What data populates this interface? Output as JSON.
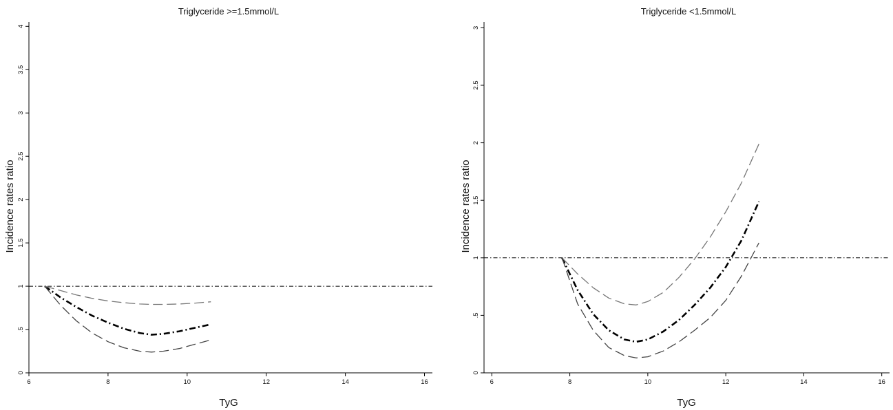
{
  "chart_data": [
    {
      "type": "line",
      "title": "Triglyceride >=1.5mmol/L",
      "xlabel": "TyG",
      "ylabel": "Incidence rates ratio",
      "xlim": [
        6,
        16.2
      ],
      "ylim": [
        0,
        4.05
      ],
      "xticks": [
        6,
        8,
        10,
        12,
        14,
        16
      ],
      "xtick_labels": [
        "6",
        "8",
        "10",
        "12",
        "14",
        "16"
      ],
      "yticks": [
        0,
        0.5,
        1,
        1.5,
        2,
        2.5,
        3,
        3.5,
        4
      ],
      "ytick_labels": [
        "0",
        ".5",
        "1",
        "1.5",
        "2",
        "2.5",
        "3",
        "3.5",
        "4"
      ],
      "reference_line": 1,
      "grid": false,
      "series": [
        {
          "role": "estimate",
          "x": [
            6.4,
            6.8,
            7.2,
            7.6,
            8.0,
            8.4,
            8.8,
            9.1,
            9.4,
            9.8,
            10.2,
            10.6
          ],
          "y": [
            1.0,
            0.87,
            0.76,
            0.66,
            0.58,
            0.51,
            0.46,
            0.44,
            0.45,
            0.48,
            0.52,
            0.56
          ]
        },
        {
          "role": "upper",
          "x": [
            6.4,
            6.8,
            7.2,
            7.6,
            8.0,
            8.4,
            8.8,
            9.1,
            9.4,
            9.8,
            10.2,
            10.6
          ],
          "y": [
            1.0,
            0.95,
            0.9,
            0.86,
            0.83,
            0.81,
            0.795,
            0.79,
            0.79,
            0.795,
            0.805,
            0.82
          ]
        },
        {
          "role": "lower",
          "x": [
            6.4,
            6.8,
            7.2,
            7.6,
            8.0,
            8.4,
            8.8,
            9.1,
            9.4,
            9.8,
            10.2,
            10.6
          ],
          "y": [
            1.0,
            0.78,
            0.6,
            0.46,
            0.36,
            0.29,
            0.25,
            0.24,
            0.25,
            0.28,
            0.33,
            0.38
          ]
        }
      ]
    },
    {
      "type": "line",
      "title": "Triglyceride <1.5mmol/L",
      "xlabel": "TyG",
      "ylabel": "Incidence rates ratio",
      "xlim": [
        5.8,
        16.2
      ],
      "ylim": [
        0,
        3.05
      ],
      "xticks": [
        6,
        8,
        10,
        12,
        14,
        16
      ],
      "xtick_labels": [
        "6",
        "8",
        "10",
        "12",
        "14",
        "16"
      ],
      "yticks": [
        0,
        0.5,
        1,
        1.5,
        2,
        2.5,
        3
      ],
      "ytick_labels": [
        "0",
        ".5",
        "1",
        "1.5",
        "2",
        "2.5",
        "3"
      ],
      "reference_line": 1,
      "grid": false,
      "series": [
        {
          "role": "estimate",
          "x": [
            7.8,
            8.2,
            8.6,
            9.0,
            9.4,
            9.7,
            10.0,
            10.4,
            10.8,
            11.2,
            11.6,
            12.0,
            12.4,
            12.85
          ],
          "y": [
            1.0,
            0.72,
            0.51,
            0.37,
            0.29,
            0.27,
            0.29,
            0.36,
            0.46,
            0.59,
            0.74,
            0.92,
            1.15,
            1.49
          ]
        },
        {
          "role": "upper",
          "x": [
            7.8,
            8.2,
            8.6,
            9.0,
            9.4,
            9.7,
            10.0,
            10.4,
            10.8,
            11.2,
            11.6,
            12.0,
            12.4,
            12.85
          ],
          "y": [
            1.0,
            0.86,
            0.74,
            0.65,
            0.6,
            0.59,
            0.62,
            0.7,
            0.83,
            0.99,
            1.18,
            1.4,
            1.65,
            1.99
          ]
        },
        {
          "role": "lower",
          "x": [
            7.8,
            8.2,
            8.6,
            9.0,
            9.4,
            9.7,
            10.0,
            10.4,
            10.8,
            11.2,
            11.6,
            12.0,
            12.4,
            12.85
          ],
          "y": [
            1.0,
            0.6,
            0.37,
            0.22,
            0.15,
            0.13,
            0.14,
            0.19,
            0.27,
            0.37,
            0.48,
            0.63,
            0.84,
            1.13
          ]
        }
      ]
    }
  ]
}
